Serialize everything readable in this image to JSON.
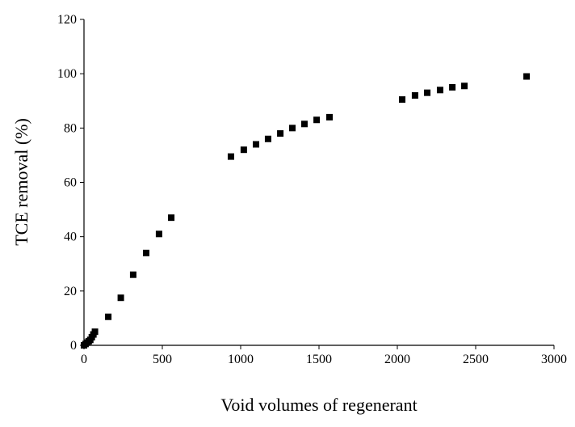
{
  "chart_data": {
    "type": "scatter",
    "x_label": "Void volumes of regenerant",
    "y_label": "TCE removal (%)",
    "x": [
      0,
      10,
      20,
      30,
      40,
      50,
      60,
      70,
      155,
      235,
      314,
      397,
      479,
      557,
      938,
      1020,
      1098,
      1175,
      1253,
      1330,
      1407,
      1485,
      1567,
      2031,
      2113,
      2191,
      2273,
      2351,
      2428,
      2825
    ],
    "values": [
      0,
      0.5,
      1,
      1.5,
      2,
      3,
      4,
      5,
      10.5,
      17.5,
      26,
      34,
      41,
      47,
      69.5,
      72,
      74,
      76,
      78,
      80,
      81.5,
      83,
      84,
      90.5,
      92,
      93,
      94,
      95,
      95.5,
      99
    ],
    "color": "#000000",
    "xlim": [
      0,
      3000
    ],
    "xticks": [
      0,
      500,
      1000,
      1500,
      2000,
      2500,
      3000
    ],
    "ylim": [
      0,
      120
    ],
    "yticks": [
      0,
      20,
      40,
      60,
      80,
      100,
      120
    ],
    "grid": false
  }
}
